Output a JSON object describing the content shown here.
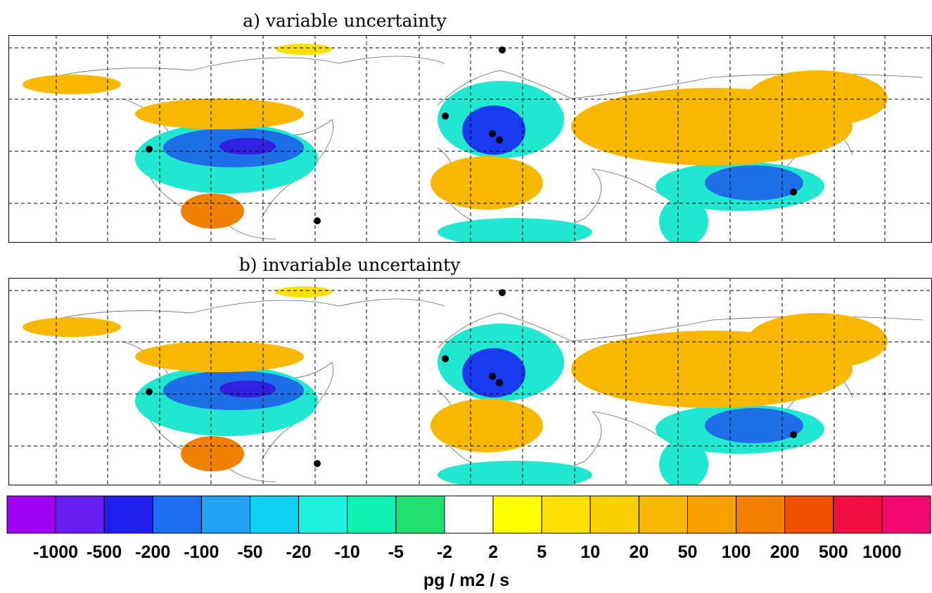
{
  "panels": [
    {
      "title": "a) variable uncertainty"
    },
    {
      "title": "b) invariable uncertainty"
    }
  ],
  "colorbar": {
    "colors": [
      "#a000f0",
      "#6a1ef0",
      "#2020f0",
      "#1e6ef0",
      "#20a0f0",
      "#10d0f0",
      "#20f0e0",
      "#10f0b0",
      "#20e070",
      "#ffffff",
      "#ffff00",
      "#fde000",
      "#fbd000",
      "#f8b800",
      "#f8a000",
      "#f58000",
      "#f05000",
      "#f01040",
      "#f00870"
    ],
    "levels": [
      -1000,
      -500,
      -200,
      -100,
      -50,
      -20,
      -10,
      -5,
      -2,
      2,
      5,
      10,
      20,
      50,
      100,
      200,
      500,
      1000
    ],
    "unit": "pg / m2 / s"
  }
}
